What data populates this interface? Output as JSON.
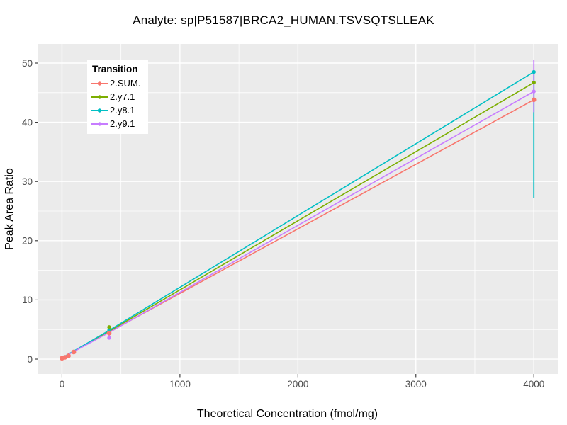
{
  "style": {
    "page_bg": "#FFFFFF",
    "panel_bg": "#EBEBEB",
    "grid_color": "#FFFFFF",
    "tick_label_color": "#4D4D4D",
    "tick_mark_color": "#333333",
    "text_color": "#000000",
    "legend_bg": "#FFFFFF"
  },
  "chart_data": {
    "type": "line",
    "title": "Analyte: sp|P51587|BRCA2_HUMAN.TSVSQTSLLEAK",
    "xlabel": "Theoretical Concentration (fmol/mg)",
    "ylabel": "Peak Area Ratio",
    "xlim": [
      -201,
      4203
    ],
    "ylim": [
      -2.51,
      53.23
    ],
    "x_ticks": [
      0,
      1000,
      2000,
      3000,
      4000
    ],
    "y_ticks": [
      0,
      10,
      20,
      30,
      40,
      50
    ],
    "grid": "major-and-minor",
    "legend": {
      "title": "Transition",
      "position": "top-left-inside"
    },
    "series": [
      {
        "name": "2.SUM.",
        "color": "#F8766D",
        "line": [
          [
            0,
            0.2
          ],
          [
            4000,
            43.8
          ]
        ],
        "points": [
          [
            0,
            0.15
          ],
          [
            25,
            0.3
          ],
          [
            55,
            0.55
          ],
          [
            100,
            1.2
          ],
          [
            400,
            4.4
          ],
          [
            4000,
            43.8
          ]
        ],
        "point_size": 3.3,
        "vsegments": []
      },
      {
        "name": "2.y7.1",
        "color": "#7CAE00",
        "line": [
          [
            0,
            0.2
          ],
          [
            400,
            4.7
          ],
          [
            4000,
            46.7
          ]
        ],
        "points": [
          [
            0,
            0.2
          ],
          [
            400,
            5.4
          ],
          [
            4000,
            46.7
          ]
        ],
        "point_size": 2.7,
        "vsegments": [
          [
            400,
            4.7,
            5.4
          ]
        ]
      },
      {
        "name": "2.y8.1",
        "color": "#00BFC4",
        "line": [
          [
            0,
            0.2
          ],
          [
            400,
            4.85
          ],
          [
            4000,
            48.5
          ]
        ],
        "points": [
          [
            0,
            0.2
          ],
          [
            400,
            4.85
          ],
          [
            4000,
            48.5
          ]
        ],
        "point_size": 2.7,
        "vsegments": [
          [
            4000,
            27.2,
            48.5
          ]
        ]
      },
      {
        "name": "2.y9.1",
        "color": "#C77CFF",
        "line": [
          [
            0,
            0.2
          ],
          [
            400,
            4.5
          ],
          [
            4000,
            45.2
          ]
        ],
        "points": [
          [
            0,
            0.2
          ],
          [
            400,
            3.6
          ],
          [
            4000,
            45.2
          ]
        ],
        "point_size": 2.7,
        "vsegments": [
          [
            400,
            3.6,
            4.5
          ],
          [
            4000,
            41.7,
            50.6
          ]
        ]
      }
    ]
  }
}
